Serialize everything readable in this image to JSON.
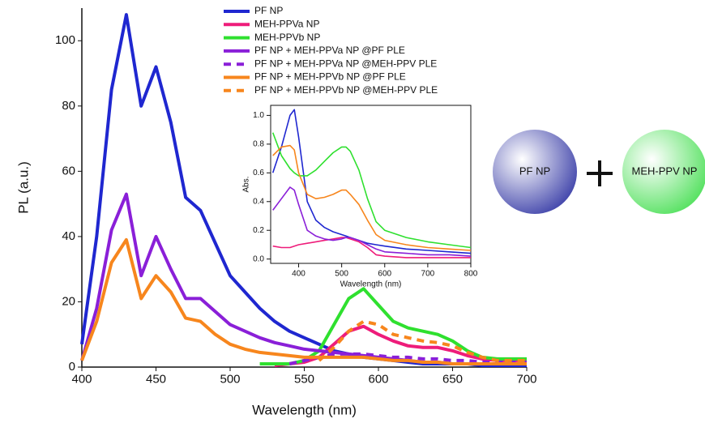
{
  "chart_data": [
    {
      "type": "line",
      "xlabel": "Wavelength (nm)",
      "ylabel": "PL (a.u.)",
      "x": [
        400,
        410,
        420,
        430,
        440,
        450,
        460,
        470,
        480,
        490,
        500,
        510,
        520,
        530,
        540,
        550,
        560,
        570,
        580,
        590,
        600,
        610,
        620,
        630,
        640,
        650,
        660,
        670,
        680,
        690,
        700
      ],
      "xlim": [
        400,
        700
      ],
      "xticks": [
        400,
        450,
        500,
        550,
        600,
        650,
        700
      ],
      "ylim": [
        0,
        110
      ],
      "yticks": [
        0,
        20,
        40,
        60,
        80,
        100
      ],
      "series": [
        {
          "name": "PF NP",
          "color": "#1f27d0",
          "dashed": false,
          "values": [
            7,
            40,
            85,
            108,
            80,
            92,
            75,
            52,
            48,
            38,
            28,
            23,
            18,
            14,
            11,
            9,
            7,
            5,
            4,
            3,
            2.5,
            2,
            1.5,
            1,
            1,
            1,
            1,
            0.5,
            0.5,
            0.5,
            0.5
          ]
        },
        {
          "name": "MEH-PPVa NP",
          "color": "#ee1c7a",
          "dashed": false,
          "values": [
            null,
            null,
            null,
            null,
            null,
            null,
            null,
            null,
            null,
            null,
            null,
            null,
            null,
            0.5,
            1,
            1.5,
            3,
            7,
            11,
            12.5,
            10,
            8,
            6.5,
            6,
            6,
            5,
            3.5,
            2.5,
            2,
            2,
            2
          ]
        },
        {
          "name": "MEH-PPVb NP",
          "color": "#2fe02f",
          "dashed": false,
          "values": [
            null,
            null,
            null,
            null,
            null,
            null,
            null,
            null,
            null,
            null,
            null,
            null,
            1,
            1,
            1,
            2,
            5,
            13,
            21,
            24,
            19,
            14,
            12,
            11,
            10,
            8,
            5,
            3,
            2.5,
            2.5,
            2.5
          ]
        },
        {
          "name": "PF NP + MEH-PPVa NP @PF PLE",
          "color": "#8a1fd8",
          "dashed": false,
          "values": [
            2,
            18,
            42,
            53,
            28,
            40,
            30,
            21,
            21,
            17,
            13,
            11,
            9,
            7.5,
            6.5,
            5.5,
            5,
            4.5,
            4,
            3.5,
            3,
            2.5,
            2,
            1.5,
            1.5,
            1,
            1,
            1,
            1,
            1,
            1
          ]
        },
        {
          "name": "PF NP + MEH-PPVa NP @MEH-PPV PLE",
          "color": "#8a1fd8",
          "dashed": true,
          "values": [
            null,
            null,
            null,
            null,
            null,
            null,
            null,
            null,
            null,
            null,
            null,
            null,
            null,
            null,
            1,
            2,
            3,
            4,
            4,
            4,
            3.5,
            3,
            3,
            2.5,
            2.5,
            2,
            2,
            1.5,
            1.5,
            1.5,
            1.5
          ]
        },
        {
          "name": "PF NP + MEH-PPVb NP @PF PLE",
          "color": "#f7861d",
          "dashed": false,
          "values": [
            2,
            14,
            32,
            39,
            21,
            28,
            23,
            15,
            14,
            10,
            7,
            5.5,
            4.5,
            4,
            3.5,
            3,
            3,
            3,
            3,
            3,
            2.5,
            2,
            2,
            1.5,
            1.5,
            1,
            1,
            1,
            1,
            1,
            1
          ]
        },
        {
          "name": "PF NP + MEH-PPVb NP @MEH-PPV PLE",
          "color": "#f7861d",
          "dashed": true,
          "values": [
            null,
            null,
            null,
            null,
            null,
            null,
            null,
            null,
            null,
            null,
            null,
            null,
            null,
            null,
            null,
            null,
            2,
            6,
            11,
            14,
            13,
            10,
            9,
            8,
            7.5,
            6.5,
            4.5,
            3,
            2,
            2,
            2
          ]
        }
      ]
    },
    {
      "type": "line",
      "xlabel": "Wavelength (nm)",
      "ylabel": "Abs.",
      "x": [
        340,
        360,
        380,
        390,
        400,
        420,
        440,
        460,
        480,
        500,
        510,
        520,
        540,
        560,
        580,
        600,
        650,
        700,
        750,
        800
      ],
      "xlim": [
        335,
        800
      ],
      "xticks": [
        400,
        500,
        600,
        700,
        800
      ],
      "ylim": [
        -0.03,
        1.07
      ],
      "yticks": [
        {
          "value": 0,
          "label": "0.0"
        },
        0.2,
        0.4,
        0.6,
        0.8,
        {
          "value": 1,
          "label": "1.0"
        }
      ],
      "series": [
        {
          "color": "#1f27d0",
          "values": [
            0.6,
            0.78,
            1.0,
            1.04,
            0.85,
            0.4,
            0.27,
            0.22,
            0.19,
            0.17,
            0.16,
            0.15,
            0.13,
            0.11,
            0.1,
            0.09,
            0.07,
            0.06,
            0.05,
            0.04
          ]
        },
        {
          "color": "#ee1c7a",
          "values": [
            0.09,
            0.08,
            0.08,
            0.09,
            0.1,
            0.11,
            0.12,
            0.13,
            0.14,
            0.15,
            0.15,
            0.14,
            0.12,
            0.08,
            0.03,
            0.02,
            0.01,
            0.01,
            0.01,
            0.01
          ]
        },
        {
          "color": "#2fe02f",
          "values": [
            0.88,
            0.72,
            0.63,
            0.6,
            0.58,
            0.58,
            0.62,
            0.68,
            0.74,
            0.78,
            0.78,
            0.75,
            0.62,
            0.42,
            0.26,
            0.2,
            0.15,
            0.12,
            0.1,
            0.08
          ]
        },
        {
          "color": "#8a1fd8",
          "values": [
            0.34,
            0.42,
            0.5,
            0.48,
            0.38,
            0.2,
            0.16,
            0.14,
            0.13,
            0.14,
            0.15,
            0.15,
            0.13,
            0.1,
            0.07,
            0.05,
            0.04,
            0.03,
            0.03,
            0.02
          ]
        },
        {
          "color": "#f7861d",
          "values": [
            0.72,
            0.78,
            0.79,
            0.76,
            0.6,
            0.45,
            0.42,
            0.43,
            0.45,
            0.48,
            0.48,
            0.45,
            0.38,
            0.27,
            0.17,
            0.13,
            0.1,
            0.08,
            0.07,
            0.06
          ]
        }
      ]
    }
  ],
  "diagram": {
    "left_label": "PF NP",
    "right_label": "MEH-PPV NP"
  }
}
